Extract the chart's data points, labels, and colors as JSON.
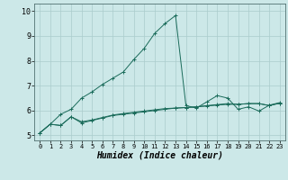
{
  "x": [
    0,
    1,
    2,
    3,
    4,
    5,
    6,
    7,
    8,
    9,
    10,
    11,
    12,
    13,
    14,
    15,
    16,
    17,
    18,
    19,
    20,
    21,
    22,
    23
  ],
  "line1": [
    5.1,
    5.45,
    5.85,
    6.05,
    6.5,
    6.75,
    7.05,
    7.3,
    7.55,
    8.05,
    8.5,
    9.1,
    9.5,
    9.82,
    6.2,
    6.1,
    6.35,
    6.6,
    6.5,
    6.05,
    6.15,
    5.98,
    6.22,
    6.32
  ],
  "line2": [
    5.1,
    5.45,
    5.4,
    5.75,
    5.5,
    5.6,
    5.7,
    5.8,
    5.85,
    5.9,
    5.95,
    6.0,
    6.05,
    6.1,
    6.12,
    6.15,
    6.18,
    6.22,
    6.25,
    6.25,
    6.28,
    6.28,
    6.2,
    6.3
  ],
  "line3": [
    5.1,
    5.45,
    5.4,
    5.75,
    5.55,
    5.62,
    5.72,
    5.82,
    5.88,
    5.93,
    5.98,
    6.03,
    6.08,
    6.1,
    6.12,
    6.15,
    6.2,
    6.24,
    6.28,
    6.25,
    6.28,
    6.28,
    6.2,
    6.3
  ],
  "line_color": "#1a6b5a",
  "bg_color": "#cce8e8",
  "grid_color": "#aacccc",
  "xlabel": "Humidex (Indice chaleur)",
  "ylim": [
    4.8,
    10.3
  ],
  "xlim": [
    -0.5,
    23.5
  ],
  "yticks": [
    5,
    6,
    7,
    8,
    9,
    10
  ],
  "xticks": [
    0,
    1,
    2,
    3,
    4,
    5,
    6,
    7,
    8,
    9,
    10,
    11,
    12,
    13,
    14,
    15,
    16,
    17,
    18,
    19,
    20,
    21,
    22,
    23
  ],
  "xlabel_fontsize": 7,
  "tick_fontsize": 6
}
